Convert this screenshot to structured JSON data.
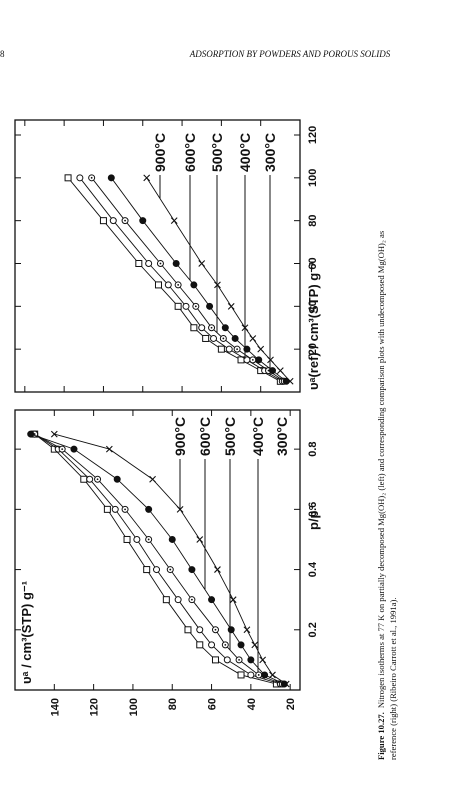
{
  "header": {
    "page": "8",
    "title": "ADSORPTION BY POWDERS AND POROUS SOLIDS"
  },
  "chart_data": [
    {
      "type": "line",
      "x_label": "p/p°",
      "y_label": "υᵃ / cm³(STP) g⁻¹",
      "x": [
        0.02,
        0.05,
        0.1,
        0.15,
        0.2,
        0.3,
        0.4,
        0.5,
        0.6,
        0.7,
        0.8,
        0.85
      ],
      "xlim": [
        0,
        0.93
      ],
      "xticks": [
        0.2,
        0.4,
        0.6,
        0.8
      ],
      "ylim": [
        15,
        160
      ],
      "yticks": [
        20,
        40,
        60,
        80,
        100,
        120,
        140
      ],
      "show_ytick_labels": true,
      "series": [
        {
          "name": "300°C",
          "marker": "square",
          "color": "#111",
          "values": [
            27,
            45,
            58,
            66,
            72,
            83,
            93,
            103,
            113,
            125,
            140,
            150
          ]
        },
        {
          "name": "400°C",
          "marker": "circle-open",
          "color": "#111",
          "values": [
            25,
            40,
            52,
            60,
            66,
            77,
            88,
            98,
            109,
            122,
            138,
            150
          ]
        },
        {
          "name": "500°C",
          "marker": "circle-dot",
          "color": "#111",
          "values": [
            24,
            36,
            46,
            53,
            58,
            70,
            81,
            92,
            104,
            118,
            136,
            150
          ]
        },
        {
          "name": "600°C",
          "marker": "circle-filled",
          "color": "#111",
          "values": [
            23,
            33,
            40,
            45,
            50,
            60,
            70,
            80,
            92,
            108,
            130,
            152
          ]
        },
        {
          "name": "900°C",
          "marker": "cross",
          "color": "#111",
          "values": [
            22,
            29,
            34,
            38,
            42,
            49,
            57,
            66,
            76,
            90,
            112,
            140
          ]
        }
      ]
    },
    {
      "type": "line",
      "x_label": "υᵃ(ref) / cm³(STP) g⁻¹",
      "x": [
        5,
        10,
        15,
        20,
        25,
        30,
        40,
        50,
        60,
        80,
        100
      ],
      "xlim": [
        0,
        127
      ],
      "xticks": [
        20,
        40,
        60,
        80,
        100,
        120
      ],
      "ylim": [
        0,
        145
      ],
      "yticks": [
        20,
        40,
        60,
        80,
        100,
        120,
        140
      ],
      "show_ytick_labels": false,
      "series": [
        {
          "name": "300°C",
          "marker": "square",
          "color": "#111",
          "values": [
            10,
            20,
            30,
            40,
            48,
            54,
            62,
            72,
            82,
            100,
            118
          ]
        },
        {
          "name": "400°C",
          "marker": "circle-open",
          "color": "#111",
          "values": [
            9,
            18,
            27,
            36,
            44,
            50,
            58,
            67,
            77,
            95,
            112
          ]
        },
        {
          "name": "500°C",
          "marker": "circle-dot",
          "color": "#111",
          "values": [
            8,
            16,
            24,
            32,
            39,
            45,
            53,
            62,
            71,
            89,
            106
          ]
        },
        {
          "name": "600°C",
          "marker": "circle-filled",
          "color": "#111",
          "values": [
            7,
            14,
            21,
            27,
            33,
            38,
            46,
            54,
            63,
            80,
            96
          ]
        },
        {
          "name": "900°C",
          "marker": "cross",
          "color": "#111",
          "values": [
            5,
            10,
            15,
            20,
            24,
            28,
            35,
            42,
            50,
            64,
            78
          ]
        }
      ]
    }
  ],
  "caption": {
    "label": "Figure 10.27.",
    "lines": [
      "Nitrogen isotherms at 77 K on partially decomposed Mg(OH)₂ (left) and corresponding comparison plots with undecomposed Mg(OH)₂ as",
      "reference (right) (Ribeiro Carrott et al., 1991a)."
    ]
  }
}
